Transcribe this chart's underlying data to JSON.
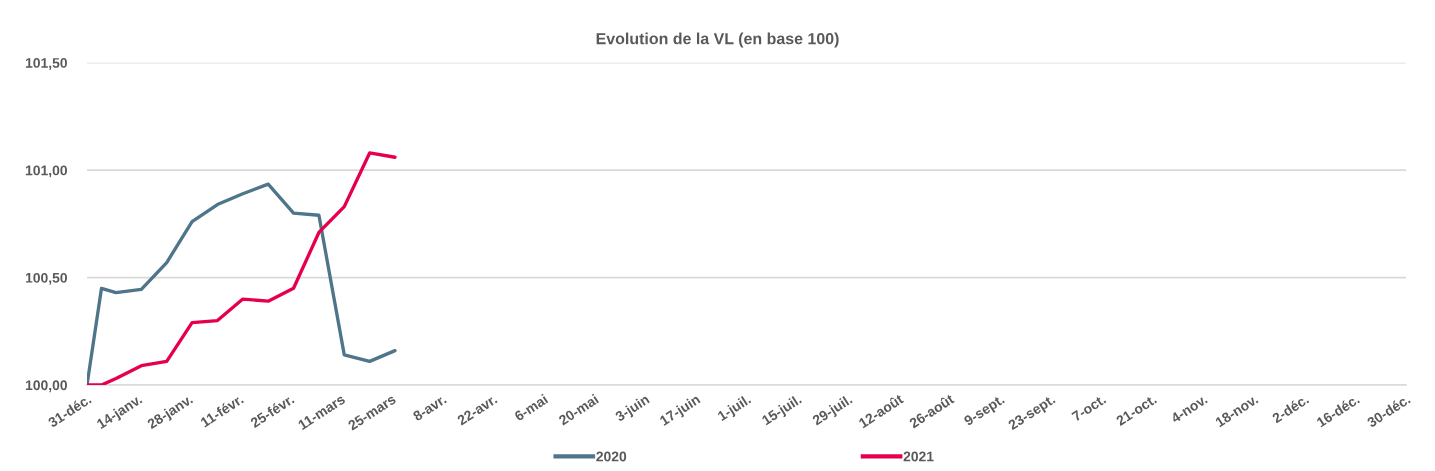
{
  "chart_data": {
    "type": "line",
    "title": "Evolution de la VL (en base 100)",
    "x": [
      "2020-12-31",
      "2021-01-04",
      "2021-01-08",
      "2021-01-15",
      "2021-01-22",
      "2021-01-29",
      "2021-02-05",
      "2021-02-12",
      "2021-02-19",
      "2021-02-26",
      "2021-03-05",
      "2021-03-12",
      "2021-03-19",
      "2021-03-26"
    ],
    "series": [
      {
        "name": "2020",
        "color": "#4e7589",
        "values": [
          100.0,
          100.45,
          100.43,
          100.445,
          100.57,
          100.76,
          100.84,
          100.89,
          100.935,
          100.8,
          100.79,
          100.14,
          100.11,
          100.16
        ]
      },
      {
        "name": "2021",
        "color": "#e6004c",
        "values": [
          100.0,
          100.0,
          100.03,
          100.09,
          100.11,
          100.29,
          100.3,
          100.4,
          100.39,
          100.45,
          100.71,
          100.83,
          101.08,
          101.06
        ]
      }
    ],
    "xlim": [
      "2020-12-31",
      "2021-12-30"
    ],
    "xticks": [
      {
        "value": "2020-12-31",
        "label": "31-déc."
      },
      {
        "value": "2021-01-14",
        "label": "14-janv."
      },
      {
        "value": "2021-01-28",
        "label": "28-janv."
      },
      {
        "value": "2021-02-11",
        "label": "11-févr."
      },
      {
        "value": "2021-02-25",
        "label": "25-févr."
      },
      {
        "value": "2021-03-11",
        "label": "11-mars"
      },
      {
        "value": "2021-03-25",
        "label": "25-mars"
      },
      {
        "value": "2021-04-08",
        "label": "8-avr."
      },
      {
        "value": "2021-04-22",
        "label": "22-avr."
      },
      {
        "value": "2021-05-06",
        "label": "6-mai"
      },
      {
        "value": "2021-05-20",
        "label": "20-mai"
      },
      {
        "value": "2021-06-03",
        "label": "3-juin"
      },
      {
        "value": "2021-06-17",
        "label": "17-juin"
      },
      {
        "value": "2021-07-01",
        "label": "1-juil."
      },
      {
        "value": "2021-07-15",
        "label": "15-juil."
      },
      {
        "value": "2021-07-29",
        "label": "29-juil."
      },
      {
        "value": "2021-08-12",
        "label": "12-août"
      },
      {
        "value": "2021-08-26",
        "label": "26-août"
      },
      {
        "value": "2021-09-09",
        "label": "9-sept."
      },
      {
        "value": "2021-09-23",
        "label": "23-sept."
      },
      {
        "value": "2021-10-07",
        "label": "7-oct."
      },
      {
        "value": "2021-10-21",
        "label": "21-oct."
      },
      {
        "value": "2021-11-04",
        "label": "4-nov."
      },
      {
        "value": "2021-11-18",
        "label": "18-nov."
      },
      {
        "value": "2021-12-02",
        "label": "2-déc."
      },
      {
        "value": "2021-12-16",
        "label": "16-déc."
      },
      {
        "value": "2021-12-30",
        "label": "30-déc."
      }
    ],
    "ylim": [
      100,
      101.5
    ],
    "yticks": [
      {
        "value": 100,
        "label": "100,00"
      },
      {
        "value": 100.5,
        "label": "100,50"
      },
      {
        "value": 101,
        "label": "101,00"
      },
      {
        "value": 101.5,
        "label": "101,50"
      }
    ],
    "grid": "y",
    "legend": "bottom",
    "marker": "none",
    "line_style": "solid"
  }
}
